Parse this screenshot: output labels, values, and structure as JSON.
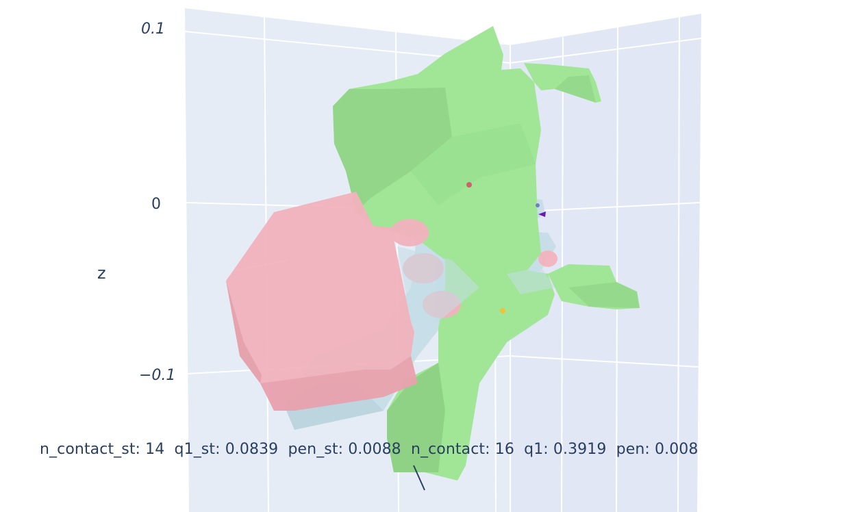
{
  "scene": {
    "axis_label_z": "z",
    "z_ticks": [
      "0.1",
      "0",
      "−0.1"
    ],
    "colors": {
      "pane_back": "#e5ecf6",
      "pane_side": "#e1e7f4",
      "grid": "#ffffff",
      "object_green": "#a1e697",
      "object_green_shade": "#8fd286",
      "gripper_pink": "#f2b3bd",
      "gripper_pink_shade": "#e9a2ae",
      "hand_blue": "#c3dde6",
      "marker_red": "#c9646a",
      "marker_yellow": "#f2c23a",
      "marker_purple": "#6a1ab0",
      "marker_blue": "#6f7fc4"
    }
  },
  "stats": {
    "line": "n_contact_st: 14  q1_st: 0.0839  pen_st: 0.0088  n_contact: 16  q1: 0.3919  pen: 0.008"
  }
}
